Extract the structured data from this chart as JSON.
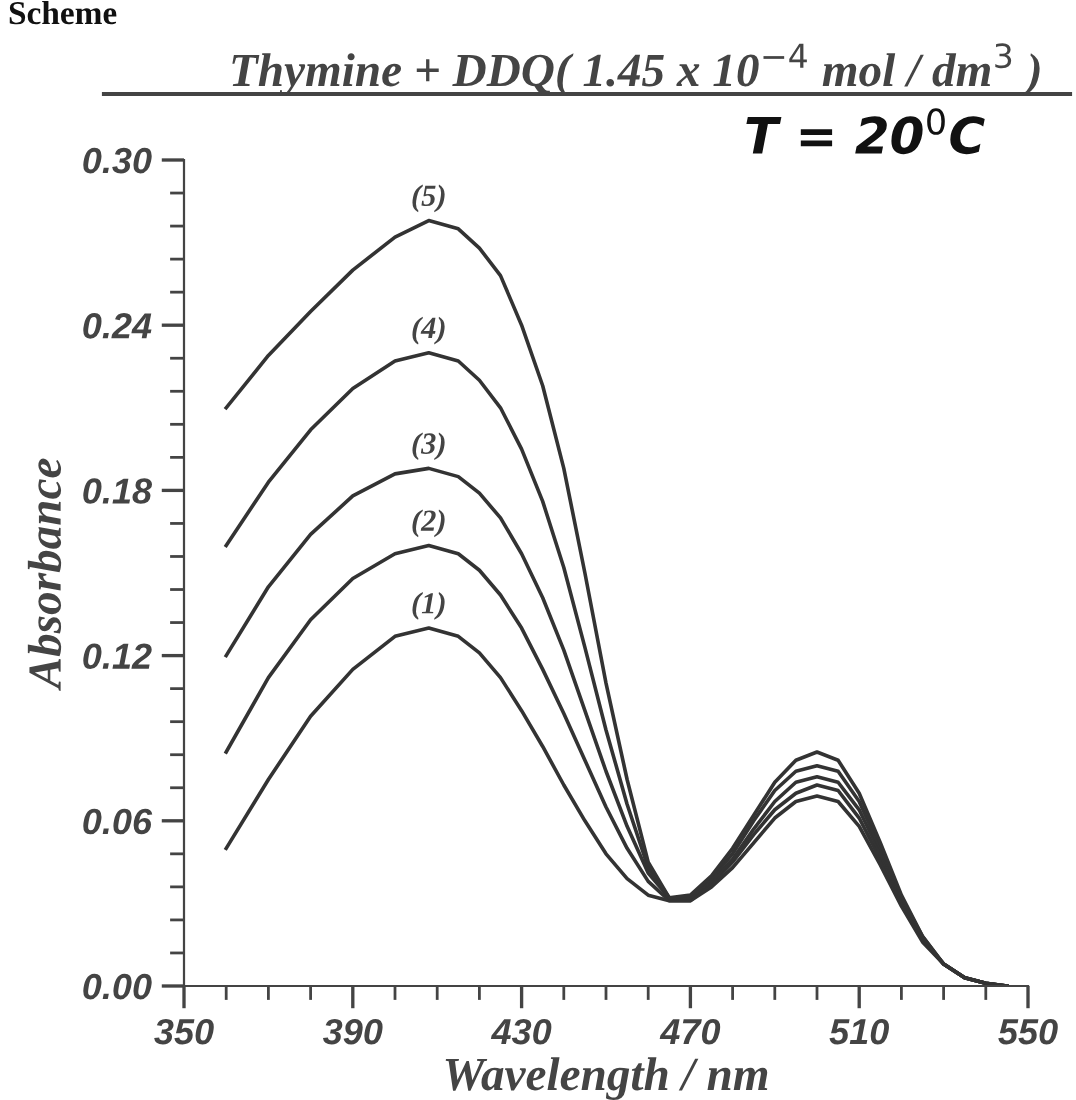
{
  "chart_data": {
    "type": "line",
    "title": "Thymine + DDQ( 1.45 x 10$^{−4}$ mol / dm$^{3}$ )",
    "xlabel": "Wavelength / nm",
    "ylabel": "Absorbance",
    "annotations": [
      "Scheme",
      "T = 20$^{0}$C"
    ],
    "x": [
      360,
      370,
      380,
      390,
      400,
      408,
      415,
      420,
      425,
      430,
      435,
      440,
      445,
      450,
      455,
      460,
      465,
      470,
      475,
      480,
      485,
      490,
      495,
      500,
      505,
      510,
      515,
      520,
      525,
      530,
      535,
      540,
      545
    ],
    "series": [
      {
        "name": "(1)",
        "color": "#333333",
        "values": [
          0.05,
          0.075,
          0.098,
          0.115,
          0.127,
          0.13,
          0.127,
          0.121,
          0.112,
          0.1,
          0.087,
          0.073,
          0.06,
          0.048,
          0.039,
          0.033,
          0.031,
          0.031,
          0.036,
          0.043,
          0.052,
          0.061,
          0.067,
          0.069,
          0.067,
          0.058,
          0.044,
          0.029,
          0.016,
          0.008,
          0.003,
          0.001,
          0
        ]
      },
      {
        "name": "(2)",
        "color": "#333333",
        "values": [
          0.085,
          0.112,
          0.133,
          0.148,
          0.157,
          0.16,
          0.157,
          0.151,
          0.142,
          0.13,
          0.115,
          0.099,
          0.082,
          0.065,
          0.05,
          0.038,
          0.031,
          0.031,
          0.037,
          0.045,
          0.055,
          0.064,
          0.07,
          0.073,
          0.071,
          0.061,
          0.046,
          0.03,
          0.017,
          0.008,
          0.003,
          0.001,
          0
        ]
      },
      {
        "name": "(3)",
        "color": "#333333",
        "values": [
          0.12,
          0.145,
          0.164,
          0.178,
          0.186,
          0.188,
          0.185,
          0.179,
          0.17,
          0.157,
          0.141,
          0.122,
          0.1,
          0.078,
          0.058,
          0.041,
          0.032,
          0.032,
          0.038,
          0.046,
          0.057,
          0.067,
          0.074,
          0.076,
          0.074,
          0.064,
          0.048,
          0.031,
          0.017,
          0.008,
          0.003,
          0.001,
          0
        ]
      },
      {
        "name": "(4)",
        "color": "#333333",
        "values": [
          0.16,
          0.183,
          0.202,
          0.217,
          0.227,
          0.23,
          0.227,
          0.22,
          0.21,
          0.195,
          0.176,
          0.152,
          0.123,
          0.093,
          0.066,
          0.043,
          0.032,
          0.032,
          0.039,
          0.048,
          0.06,
          0.071,
          0.078,
          0.08,
          0.078,
          0.067,
          0.05,
          0.032,
          0.018,
          0.008,
          0.003,
          0.001,
          0
        ]
      },
      {
        "name": "(5)",
        "color": "#333333",
        "values": [
          0.21,
          0.229,
          0.245,
          0.26,
          0.272,
          0.278,
          0.275,
          0.268,
          0.258,
          0.24,
          0.218,
          0.188,
          0.15,
          0.11,
          0.075,
          0.045,
          0.032,
          0.033,
          0.04,
          0.05,
          0.062,
          0.074,
          0.082,
          0.085,
          0.082,
          0.07,
          0.052,
          0.033,
          0.018,
          0.008,
          0.003,
          0.001,
          0
        ]
      }
    ],
    "xlim": [
      350,
      550
    ],
    "xticks": [
      350,
      390,
      430,
      470,
      510,
      550
    ],
    "ylim": [
      0,
      0.3
    ],
    "yticks": [
      {
        "value": 0,
        "label": "0.00"
      },
      {
        "value": 0.06,
        "label": "0.06"
      },
      {
        "value": 0.12,
        "label": "0.12"
      },
      {
        "value": 0.18,
        "label": "0.18"
      },
      {
        "value": 0.24,
        "label": "0.24"
      },
      {
        "value": 0.3,
        "label": "0.30"
      }
    ],
    "grid": false,
    "legend": false,
    "marker": "none",
    "line_style": "solid"
  }
}
